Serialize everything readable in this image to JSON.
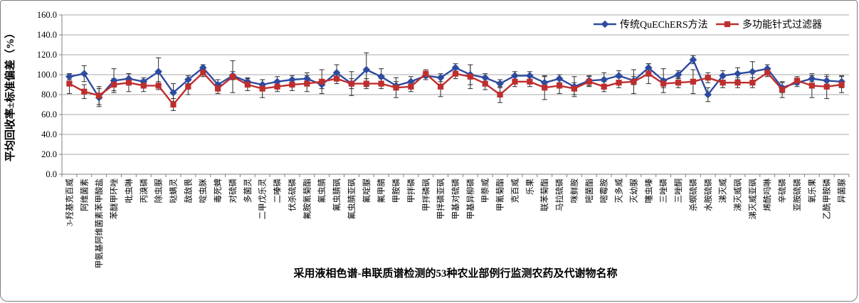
{
  "chart_data": {
    "type": "line",
    "title": "",
    "xlabel": "采用液相色谱-串联质谱检测的53种农业部例行监测农药及代谢物名称",
    "ylabel": "平均回收率±标准偏差（%）",
    "ylim": [
      0,
      160
    ],
    "ytick_step": 20,
    "ytick_labels": [
      "0.0",
      "20.0",
      "40.0",
      "60.0",
      "80.0",
      "100.0",
      "120.0",
      "140.0",
      "160.0"
    ],
    "grid": "horizontal",
    "legend_position": "top-right-inside",
    "error_bars": true,
    "categories": [
      "3-羟基克百威",
      "阿维菌素",
      "甲氨基阿维菌素苯甲酸盐",
      "苯醚甲环唑",
      "吡虫啉",
      "丙溴磷",
      "除虫脲",
      "哒螨灵",
      "敌敌畏",
      "啶虫脒",
      "毒死蜱",
      "对硫磷",
      "多菌灵",
      "二甲戊乐灵",
      "二嗪磷",
      "伏杀硫磷",
      "氟胺氰菊酯",
      "氟虫腈",
      "氟虫腈砜",
      "氟虫腈亚砜",
      "氟啶脲",
      "氟甲腈",
      "甲胺磷",
      "甲拌磷",
      "甲拌磷砜",
      "甲拌磷亚砜",
      "甲基对硫磷",
      "甲基异柳磷",
      "甲萘威",
      "甲氰菊酯",
      "克百威",
      "乐果",
      "联苯菊酯",
      "马拉硫磷",
      "咪鲜胺",
      "嘧菌酯",
      "嘧霉胺",
      "灭多威",
      "灭幼脲",
      "噻虫嗪",
      "三唑磷",
      "三唑酮",
      "杀螟硫磷",
      "水胺硫磷",
      "涕灭威",
      "涕灭威砜",
      "涕灭威亚砜",
      "烯酰吗啉",
      "辛硫磷",
      "亚胺硫磷",
      "氧乐果",
      "乙酰甲胺磷",
      "异菌脲"
    ],
    "series": [
      {
        "name": "传统QuEChERS方法",
        "marker": "diamond",
        "color": "#2E4B9F",
        "values": [
          98,
          101,
          77,
          94,
          96,
          93,
          103,
          82,
          95,
          107,
          90,
          99,
          93,
          90,
          93,
          95,
          96,
          90,
          102,
          91,
          105,
          98,
          89,
          93,
          99,
          97,
          107,
          100,
          97,
          91,
          99,
          99,
          92,
          96,
          88,
          94,
          95,
          99,
          94,
          107,
          94,
          100,
          115,
          80,
          99,
          101,
          103,
          106,
          87,
          92,
          96,
          94,
          93
        ],
        "errors": [
          3,
          8,
          9,
          12,
          5,
          4,
          14,
          9,
          4,
          3,
          5,
          4,
          4,
          5,
          5,
          4,
          6,
          4,
          8,
          5,
          17,
          8,
          4,
          5,
          4,
          4,
          4,
          10,
          4,
          4,
          4,
          4,
          6,
          4,
          10,
          5,
          7,
          5,
          4,
          4,
          12,
          4,
          4,
          7,
          5,
          6,
          10,
          4,
          5,
          4,
          3,
          4,
          6
        ]
      },
      {
        "name": "多功能针式过滤器",
        "marker": "square",
        "color": "#BE2E2E",
        "values": [
          91,
          83,
          79,
          90,
          92,
          89,
          89,
          70,
          88,
          102,
          86,
          98,
          90,
          86,
          88,
          90,
          91,
          93,
          96,
          91,
          91,
          91,
          87,
          88,
          101,
          88,
          101,
          98,
          91,
          80,
          93,
          93,
          87,
          89,
          86,
          93,
          88,
          92,
          93,
          101,
          91,
          92,
          93,
          97,
          92,
          92,
          92,
          102,
          85,
          94,
          89,
          88,
          90
        ],
        "errors": [
          10,
          7,
          9,
          6,
          9,
          6,
          4,
          6,
          8,
          4,
          5,
          16,
          6,
          9,
          5,
          6,
          8,
          12,
          5,
          12,
          5,
          5,
          10,
          5,
          4,
          10,
          5,
          12,
          6,
          8,
          5,
          5,
          12,
          8,
          6,
          5,
          5,
          5,
          12,
          10,
          4,
          5,
          12,
          5,
          5,
          5,
          5,
          4,
          8,
          4,
          12,
          12,
          8
        ]
      }
    ],
    "colors": {
      "gridline": "#a9a9a9",
      "axis": "#7f7f7f",
      "error_bar": "#2b2b2b",
      "text": "#000000"
    }
  }
}
